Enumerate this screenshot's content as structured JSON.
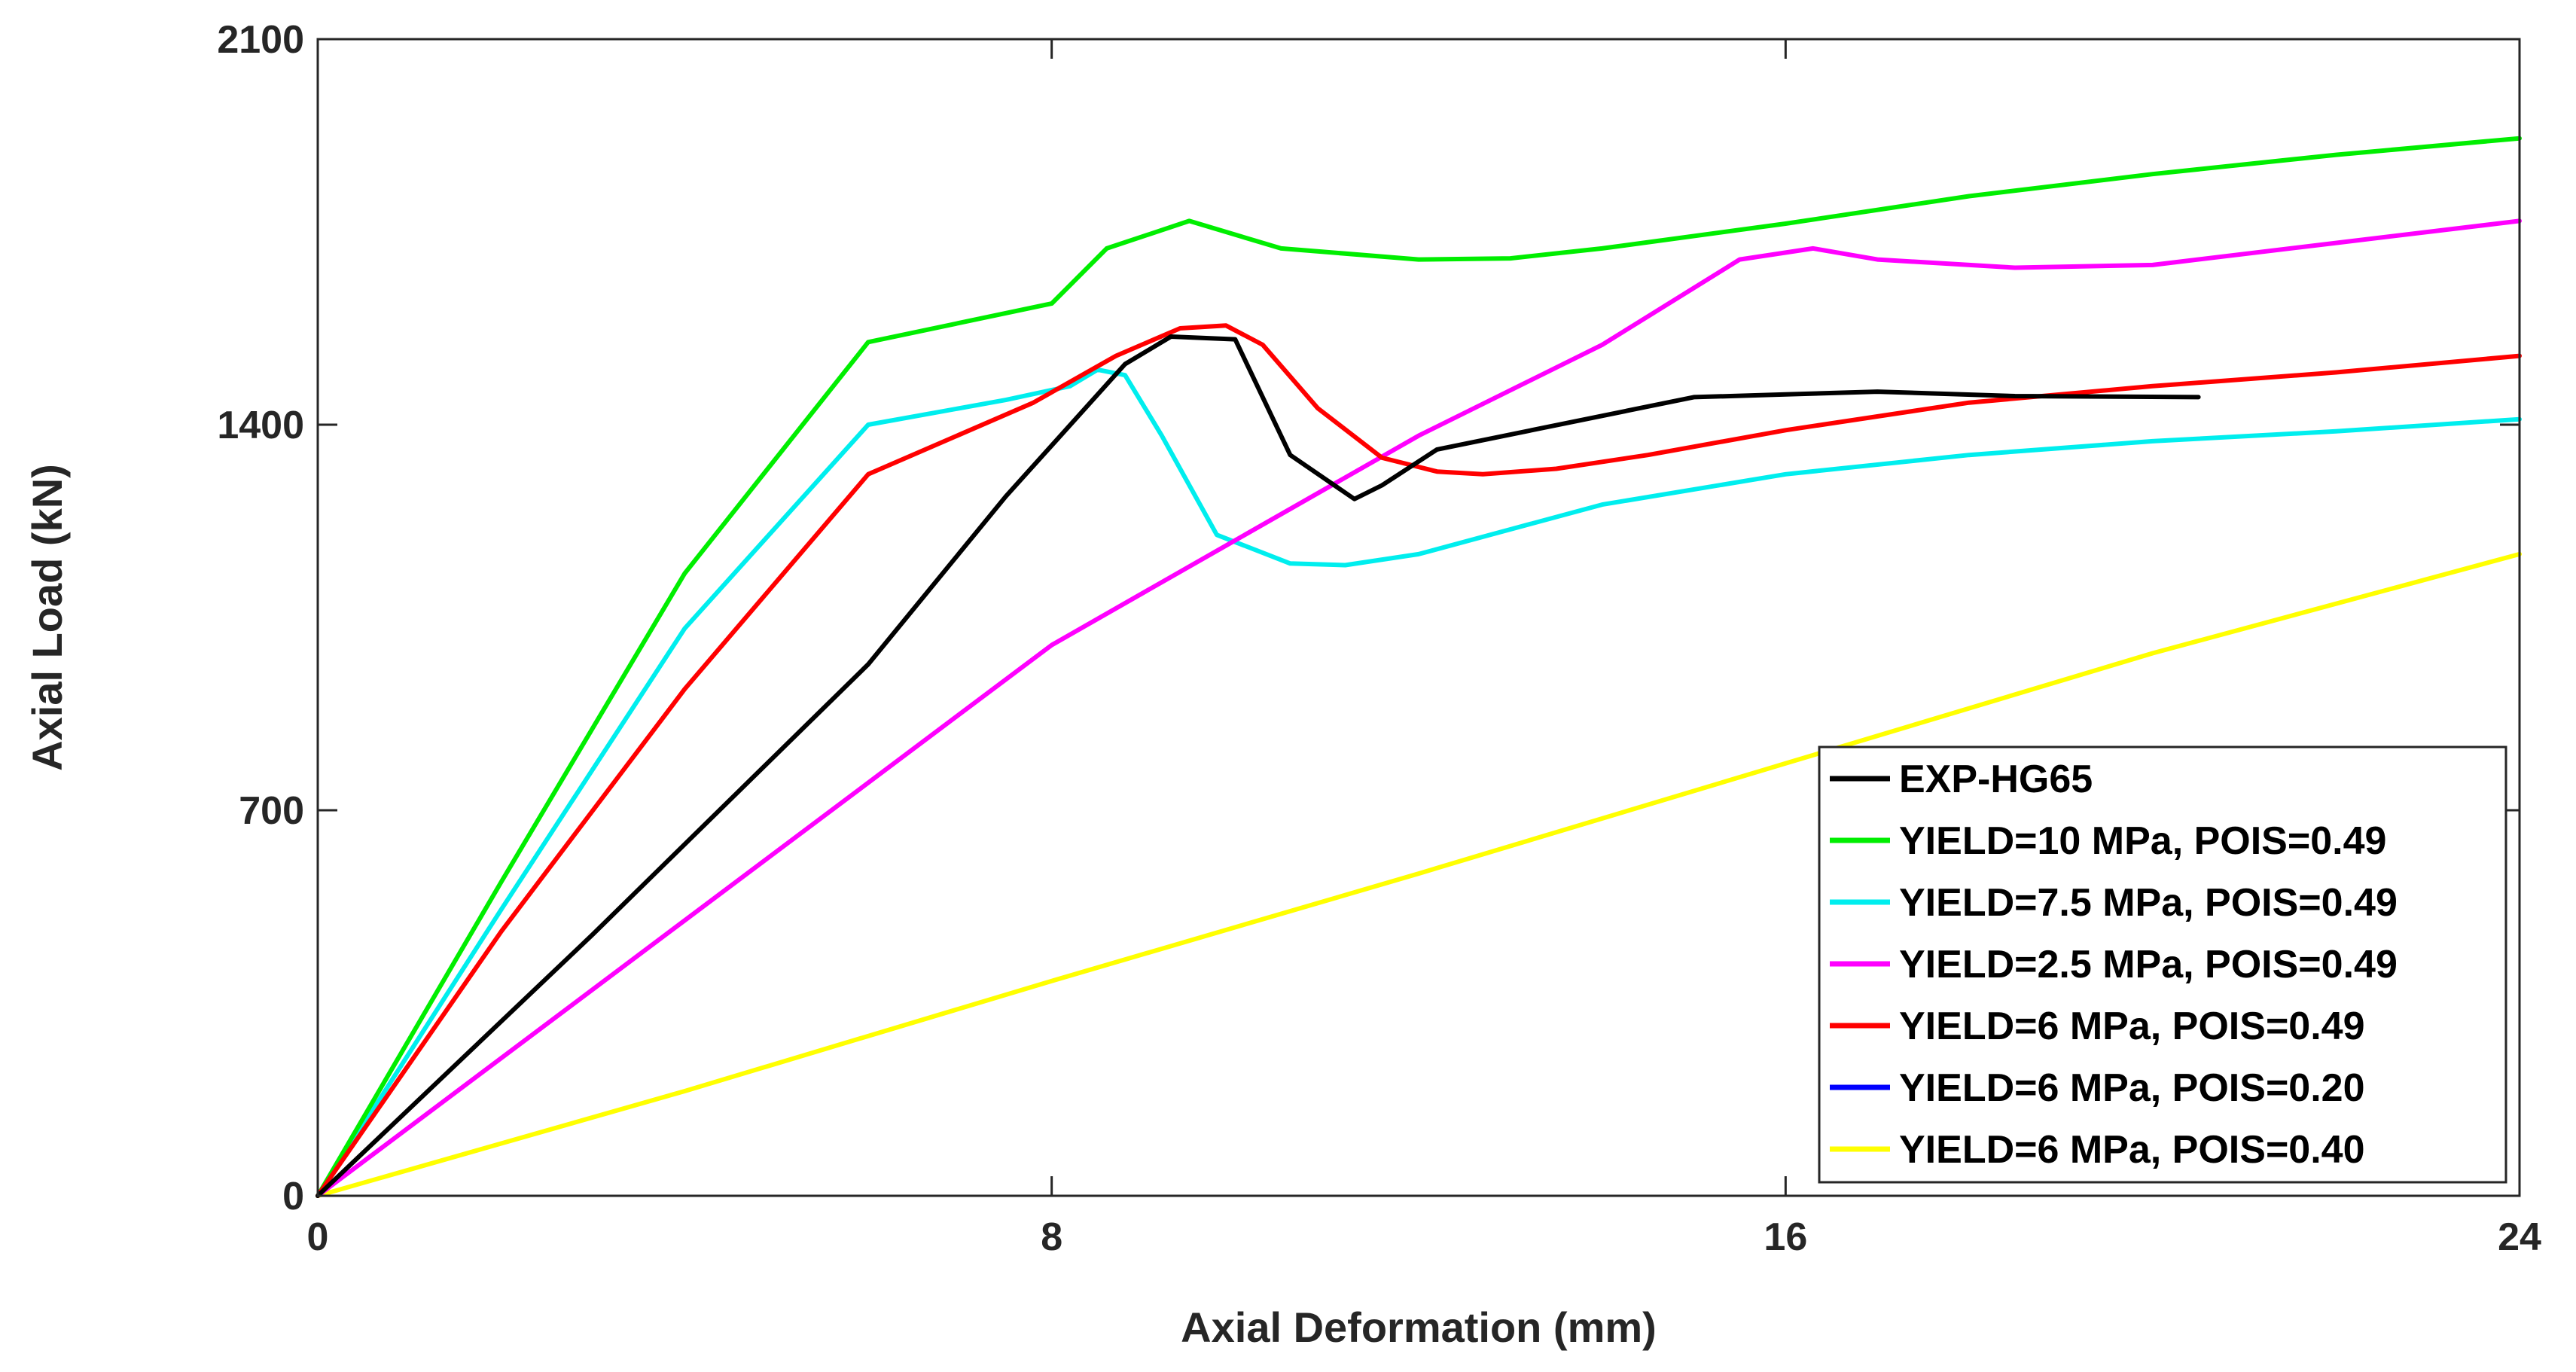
{
  "chart_data": {
    "type": "line",
    "title": "",
    "xlabel": "Axial Deformation (mm)",
    "ylabel": "Axial Load (kN)",
    "xlim": [
      0,
      24
    ],
    "ylim": [
      0,
      2100
    ],
    "xticks": [
      0,
      8,
      16,
      24
    ],
    "yticks": [
      0,
      700,
      1400,
      2100
    ],
    "xtick_labels": [
      "0",
      "8",
      "16",
      "24"
    ],
    "ytick_labels": [
      "0",
      "700",
      "1400",
      "2100"
    ],
    "grid": false,
    "legend_position": "bottom-right",
    "series": [
      {
        "name": "EXP-HG65",
        "color": "#000000",
        "points": [
          [
            0,
            0
          ],
          [
            3,
            475
          ],
          [
            6,
            965
          ],
          [
            7.5,
            1270
          ],
          [
            8.8,
            1510
          ],
          [
            9.3,
            1560
          ],
          [
            10,
            1555
          ],
          [
            10.6,
            1345
          ],
          [
            11.3,
            1265
          ],
          [
            11.6,
            1290
          ],
          [
            12.2,
            1355
          ],
          [
            15,
            1450
          ],
          [
            16,
            1455
          ],
          [
            17,
            1460
          ],
          [
            18.5,
            1452
          ],
          [
            20.5,
            1450
          ]
        ]
      },
      {
        "name": "YIELD=10 MPa, POIS=0.49",
        "color": "#00EE00",
        "points": [
          [
            0,
            0
          ],
          [
            2,
            570
          ],
          [
            4,
            1130
          ],
          [
            6,
            1550
          ],
          [
            8,
            1620
          ],
          [
            8.6,
            1720
          ],
          [
            9.5,
            1770
          ],
          [
            10.5,
            1720
          ],
          [
            12,
            1700
          ],
          [
            13,
            1702
          ],
          [
            14,
            1720
          ],
          [
            16,
            1765
          ],
          [
            18,
            1815
          ],
          [
            20,
            1855
          ],
          [
            22,
            1890
          ],
          [
            24,
            1920
          ]
        ]
      },
      {
        "name": "YIELD=7.5 MPa, POIS=0.49",
        "color": "#00EEEE",
        "points": [
          [
            0,
            0
          ],
          [
            2,
            520
          ],
          [
            4,
            1030
          ],
          [
            6,
            1400
          ],
          [
            7.5,
            1445
          ],
          [
            8.2,
            1470
          ],
          [
            8.5,
            1500
          ],
          [
            8.8,
            1490
          ],
          [
            9.2,
            1380
          ],
          [
            9.8,
            1200
          ],
          [
            10.6,
            1148
          ],
          [
            11.2,
            1145
          ],
          [
            12,
            1165
          ],
          [
            13,
            1210
          ],
          [
            14,
            1255
          ],
          [
            16,
            1310
          ],
          [
            18,
            1345
          ],
          [
            20,
            1370
          ],
          [
            22,
            1388
          ],
          [
            24,
            1410
          ]
        ]
      },
      {
        "name": "YIELD=2.5 MPa, POIS=0.49",
        "color": "#FF00FF",
        "points": [
          [
            0,
            0
          ],
          [
            4,
            500
          ],
          [
            8,
            1000
          ],
          [
            10,
            1190
          ],
          [
            12,
            1380
          ],
          [
            14,
            1545
          ],
          [
            15.5,
            1700
          ],
          [
            16.3,
            1720
          ],
          [
            17,
            1700
          ],
          [
            18.5,
            1685
          ],
          [
            20,
            1690
          ],
          [
            22,
            1730
          ],
          [
            24,
            1770
          ]
        ]
      },
      {
        "name": "YIELD=6 MPa, POIS=0.49",
        "color": "#FF0000",
        "points": [
          [
            0,
            0
          ],
          [
            2,
            480
          ],
          [
            4,
            920
          ],
          [
            6,
            1310
          ],
          [
            7.8,
            1440
          ],
          [
            8.7,
            1525
          ],
          [
            9.4,
            1575
          ],
          [
            9.9,
            1580
          ],
          [
            10.3,
            1545
          ],
          [
            10.9,
            1430
          ],
          [
            11.6,
            1340
          ],
          [
            12.2,
            1315
          ],
          [
            12.7,
            1310
          ],
          [
            13.5,
            1320
          ],
          [
            14.5,
            1345
          ],
          [
            16,
            1390
          ],
          [
            18,
            1440
          ],
          [
            20,
            1470
          ],
          [
            22,
            1495
          ],
          [
            24,
            1525
          ]
        ]
      },
      {
        "name": "YIELD=6 MPa, POIS=0.20",
        "color": "#0000FF",
        "points": []
      },
      {
        "name": "YIELD=6 MPa, POIS=0.40",
        "color": "#FFFF00",
        "points": [
          [
            0,
            0
          ],
          [
            4,
            190
          ],
          [
            8,
            390
          ],
          [
            12,
            585
          ],
          [
            16,
            785
          ],
          [
            20,
            985
          ],
          [
            24,
            1165
          ]
        ]
      }
    ]
  }
}
